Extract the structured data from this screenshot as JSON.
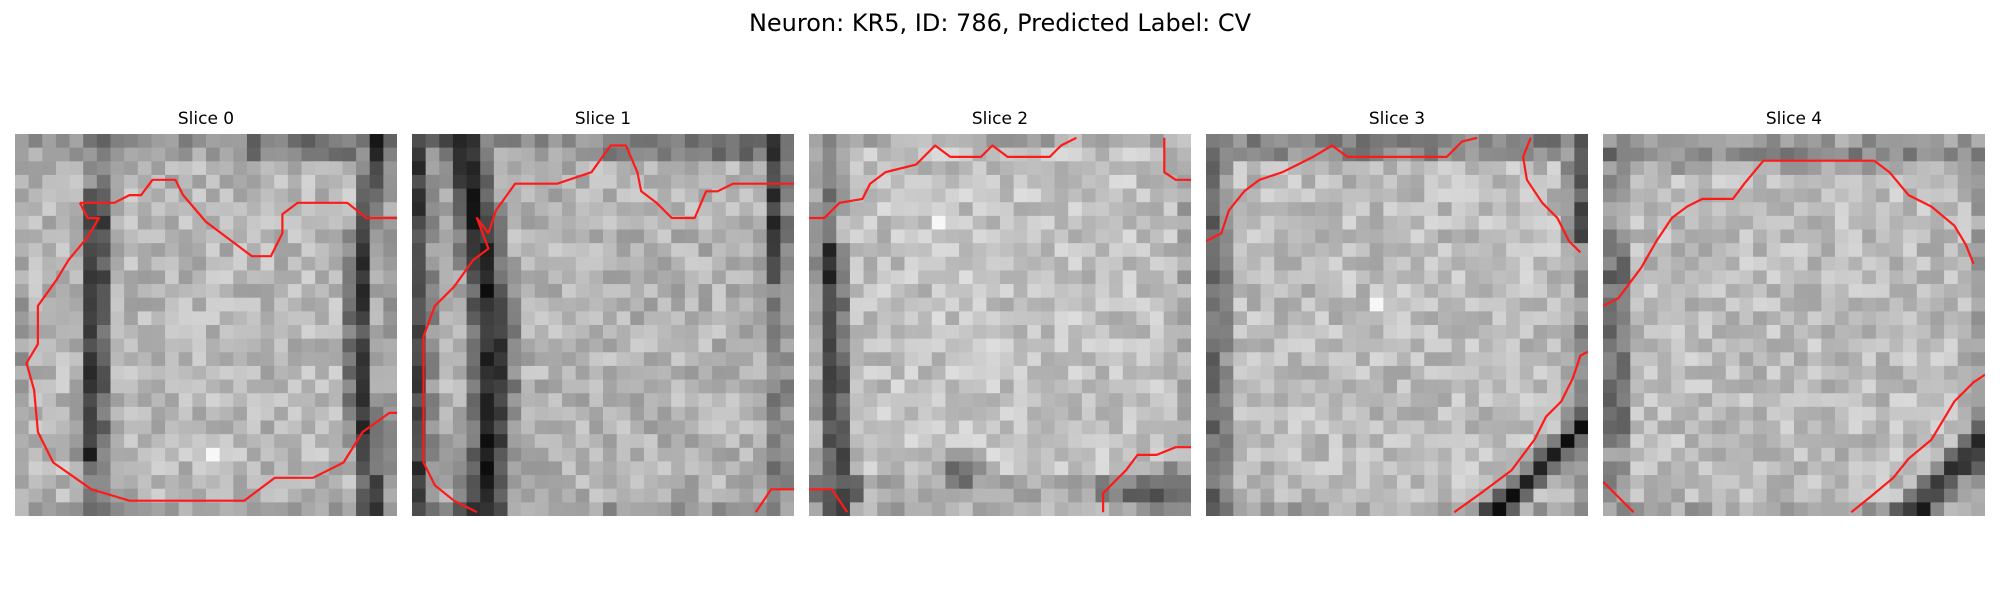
{
  "figure": {
    "title": "Neuron: KR5, ID: 786, Predicted Label: CV"
  },
  "panels": [
    {
      "title": "Slice 0"
    },
    {
      "title": "Slice 1"
    },
    {
      "title": "Slice 2"
    },
    {
      "title": "Slice 3"
    },
    {
      "title": "Slice 4"
    }
  ],
  "style": {
    "contour_color": "#ff1a1a",
    "colormap": "grayscale"
  }
}
